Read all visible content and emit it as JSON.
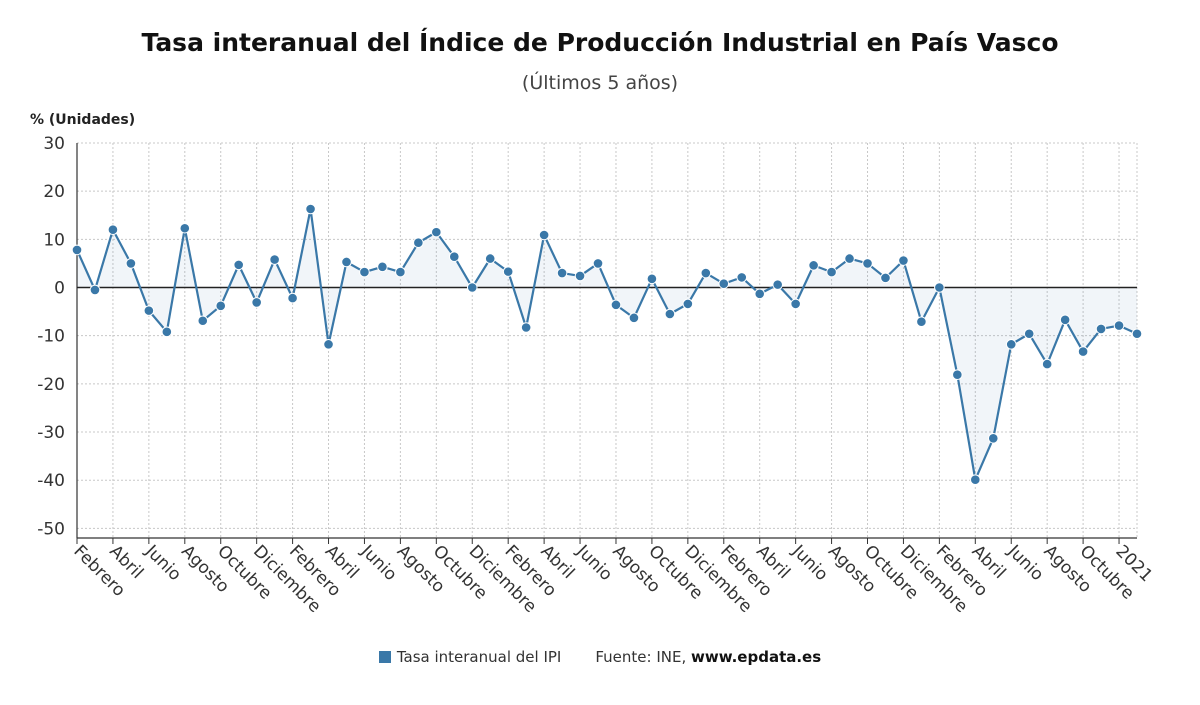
{
  "chart_data": {
    "type": "line",
    "title": "Tasa interanual del Índice de Producción Industrial en País Vasco",
    "subtitle": "(Últimos 5 años)",
    "ylabel": "% (Unidades)",
    "ylim": [
      -52,
      30
    ],
    "yticks": [
      30,
      20,
      10,
      0,
      -10,
      -20,
      -30,
      -40,
      -50
    ],
    "grid": true,
    "legend_position": "bottom",
    "x_tick_labels": [
      "Febrero",
      "Abril",
      "Junio",
      "Agosto",
      "Octubre",
      "Diciembre",
      "Febrero",
      "Abril",
      "Junio",
      "Agosto",
      "Octubre",
      "Diciembre",
      "Febrero",
      "Abril",
      "Junio",
      "Agosto",
      "Octubre",
      "Diciembre",
      "Febrero",
      "Abril",
      "Junio",
      "Agosto",
      "Octubre",
      "Diciembre",
      "Febrero",
      "Abril",
      "Junio",
      "Agosto",
      "Octubre",
      "2021"
    ],
    "series": [
      {
        "name": "Tasa interanual del IPI",
        "color": "#3a78a8",
        "values": [
          7.8,
          -0.5,
          12.0,
          5.0,
          -4.8,
          -9.2,
          12.3,
          -6.9,
          -3.8,
          4.7,
          -3.1,
          5.8,
          -2.2,
          16.3,
          -11.8,
          5.3,
          3.2,
          4.3,
          3.2,
          9.3,
          11.5,
          6.4,
          0.0,
          6.0,
          3.3,
          -8.3,
          10.9,
          3.0,
          2.4,
          5.0,
          -3.6,
          -6.3,
          1.8,
          -5.5,
          -3.4,
          3.0,
          0.8,
          2.1,
          -1.3,
          0.6,
          -3.4,
          4.6,
          3.2,
          6.0,
          5.0,
          2.0,
          5.6,
          -7.1,
          0.0,
          -18.1,
          -39.9,
          -31.3,
          -11.8,
          -9.6,
          -15.9,
          -6.7,
          -13.3,
          -8.6,
          -7.9,
          -9.6
        ]
      }
    ],
    "source_label": "Fuente: INE, ",
    "source_site": "www.epdata.es"
  }
}
